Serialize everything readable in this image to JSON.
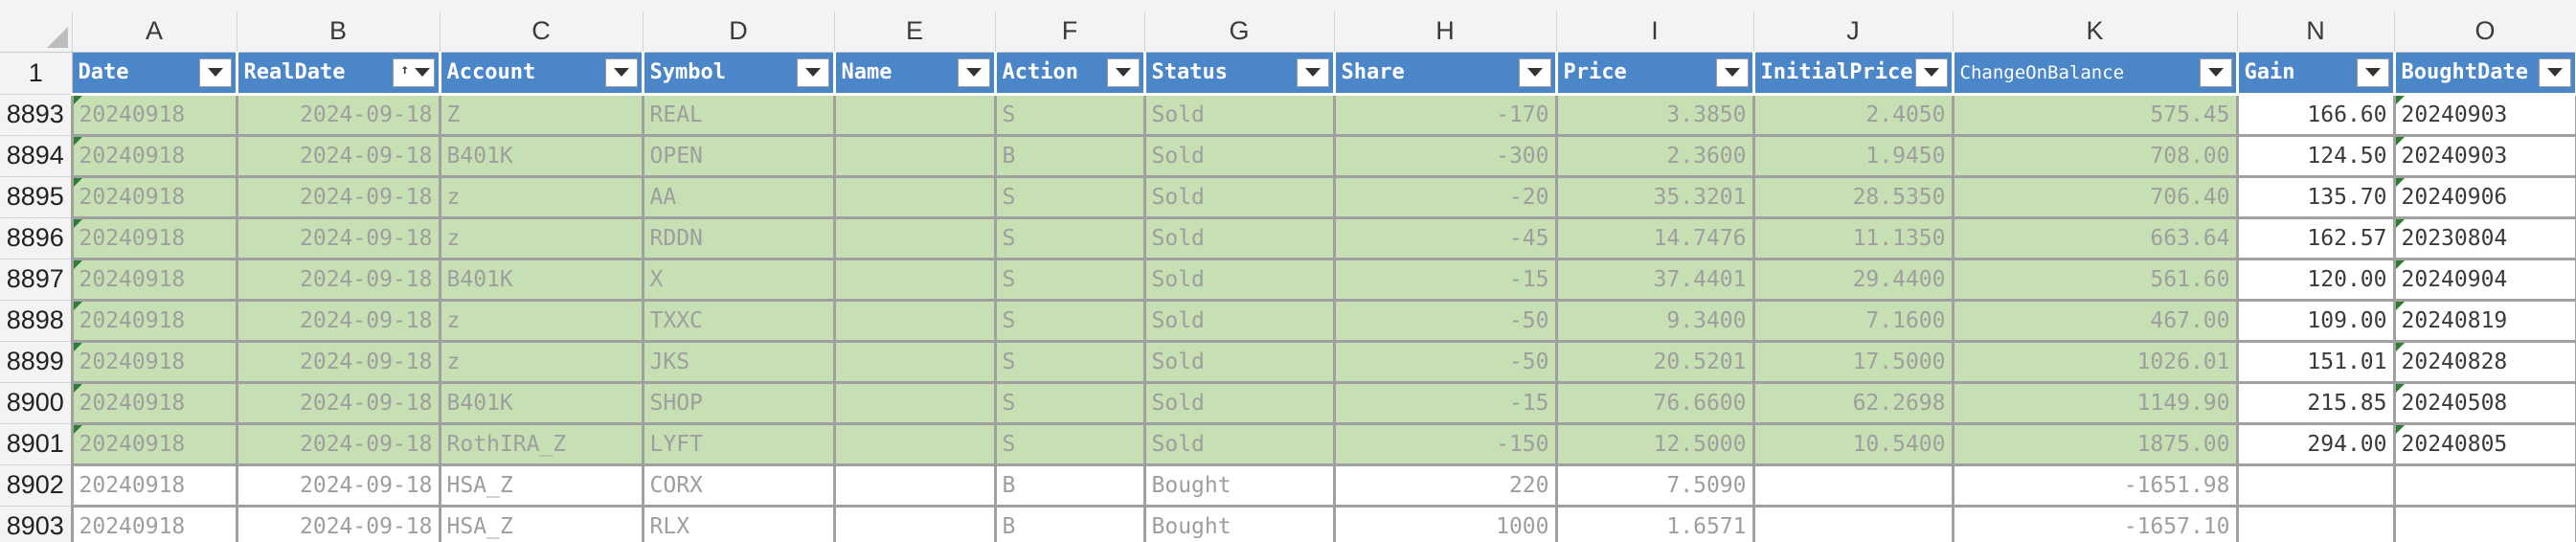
{
  "column_letters": [
    "A",
    "B",
    "C",
    "D",
    "E",
    "F",
    "G",
    "H",
    "I",
    "J",
    "K",
    "N",
    "O"
  ],
  "header_row_number": "1",
  "headers": [
    "Date",
    "RealDate",
    "Account",
    "Symbol",
    "Name",
    "Action",
    "Status",
    "Share",
    "Price",
    "InitialPrice",
    "ChangeOnBalance",
    "Gain",
    "BoughtDate"
  ],
  "rows": [
    {
      "n": "8893",
      "type": "sold",
      "cells": [
        "20240918",
        "2024-09-18",
        "Z",
        "REAL",
        "",
        "S",
        "Sold",
        "-170",
        "3.3850",
        "2.4050",
        "575.45",
        "166.60",
        "20240903"
      ]
    },
    {
      "n": "8894",
      "type": "sold",
      "cells": [
        "20240918",
        "2024-09-18",
        "B401K",
        "OPEN",
        "",
        "B",
        "Sold",
        "-300",
        "2.3600",
        "1.9450",
        "708.00",
        "124.50",
        "20240903"
      ]
    },
    {
      "n": "8895",
      "type": "sold",
      "cells": [
        "20240918",
        "2024-09-18",
        "z",
        "AA",
        "",
        "S",
        "Sold",
        "-20",
        "35.3201",
        "28.5350",
        "706.40",
        "135.70",
        "20240906"
      ]
    },
    {
      "n": "8896",
      "type": "sold",
      "cells": [
        "20240918",
        "2024-09-18",
        "z",
        "RDDN",
        "",
        "S",
        "Sold",
        "-45",
        "14.7476",
        "11.1350",
        "663.64",
        "162.57",
        "20230804"
      ]
    },
    {
      "n": "8897",
      "type": "sold",
      "cells": [
        "20240918",
        "2024-09-18",
        "B401K",
        "X",
        "",
        "S",
        "Sold",
        "-15",
        "37.4401",
        "29.4400",
        "561.60",
        "120.00",
        "20240904"
      ]
    },
    {
      "n": "8898",
      "type": "sold",
      "cells": [
        "20240918",
        "2024-09-18",
        "z",
        "TXXC",
        "",
        "S",
        "Sold",
        "-50",
        "9.3400",
        "7.1600",
        "467.00",
        "109.00",
        "20240819"
      ]
    },
    {
      "n": "8899",
      "type": "sold",
      "cells": [
        "20240918",
        "2024-09-18",
        "z",
        "JKS",
        "",
        "S",
        "Sold",
        "-50",
        "20.5201",
        "17.5000",
        "1026.01",
        "151.01",
        "20240828"
      ]
    },
    {
      "n": "8900",
      "type": "sold",
      "cells": [
        "20240918",
        "2024-09-18",
        "B401K",
        "SHOP",
        "",
        "S",
        "Sold",
        "-15",
        "76.6600",
        "62.2698",
        "1149.90",
        "215.85",
        "20240508"
      ]
    },
    {
      "n": "8901",
      "type": "sold",
      "cells": [
        "20240918",
        "2024-09-18",
        "RothIRA_Z",
        "LYFT",
        "",
        "S",
        "Sold",
        "-150",
        "12.5000",
        "10.5400",
        "1875.00",
        "294.00",
        "20240805"
      ]
    },
    {
      "n": "8902",
      "type": "bought",
      "cells": [
        "20240918",
        "2024-09-18",
        "HSA_Z",
        "CORX",
        "",
        "B",
        "Bought",
        "220",
        "7.5090",
        "",
        "-1651.98",
        "",
        ""
      ]
    },
    {
      "n": "8903",
      "type": "bought",
      "cells": [
        "20240918",
        "2024-09-18",
        "HSA_Z",
        "RLX",
        "",
        "B",
        "Bought",
        "1000",
        "1.6571",
        "",
        "-1657.10",
        "",
        ""
      ]
    }
  ],
  "colors": {
    "header_fill": "#4a86c8",
    "sold_fill": "#c6e0b4",
    "grid_border": "#a0a0a0"
  }
}
